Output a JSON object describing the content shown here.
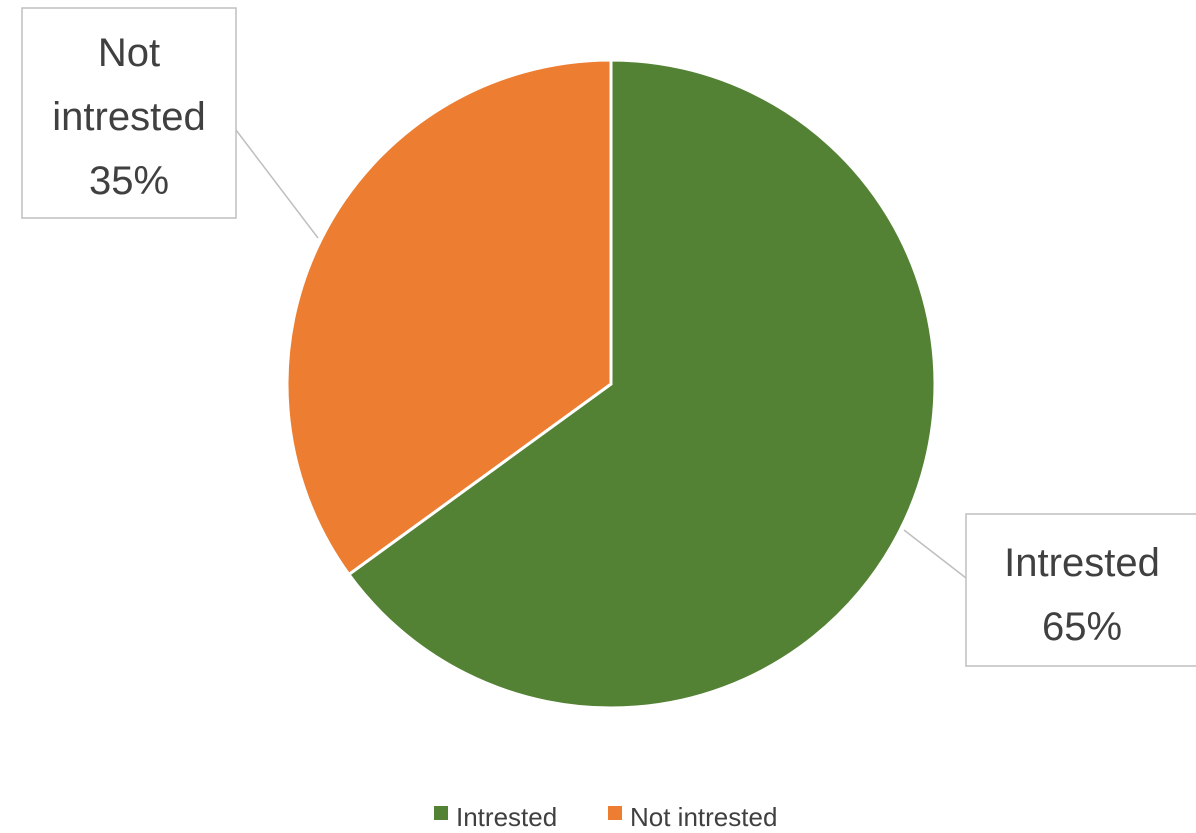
{
  "chart_data": {
    "type": "pie",
    "title": "",
    "categories": [
      "Intrested",
      "Not intrested"
    ],
    "values": [
      65,
      35
    ],
    "colors": [
      "#548235",
      "#ED7D31"
    ],
    "data_labels": [
      {
        "name_lines": [
          "Intrested"
        ],
        "percent": "65%"
      },
      {
        "name_lines": [
          "Not",
          "intrested"
        ],
        "percent": "35%"
      }
    ],
    "legend": {
      "placement": "bottom",
      "items": [
        "Intrested",
        "Not intrested"
      ]
    }
  }
}
